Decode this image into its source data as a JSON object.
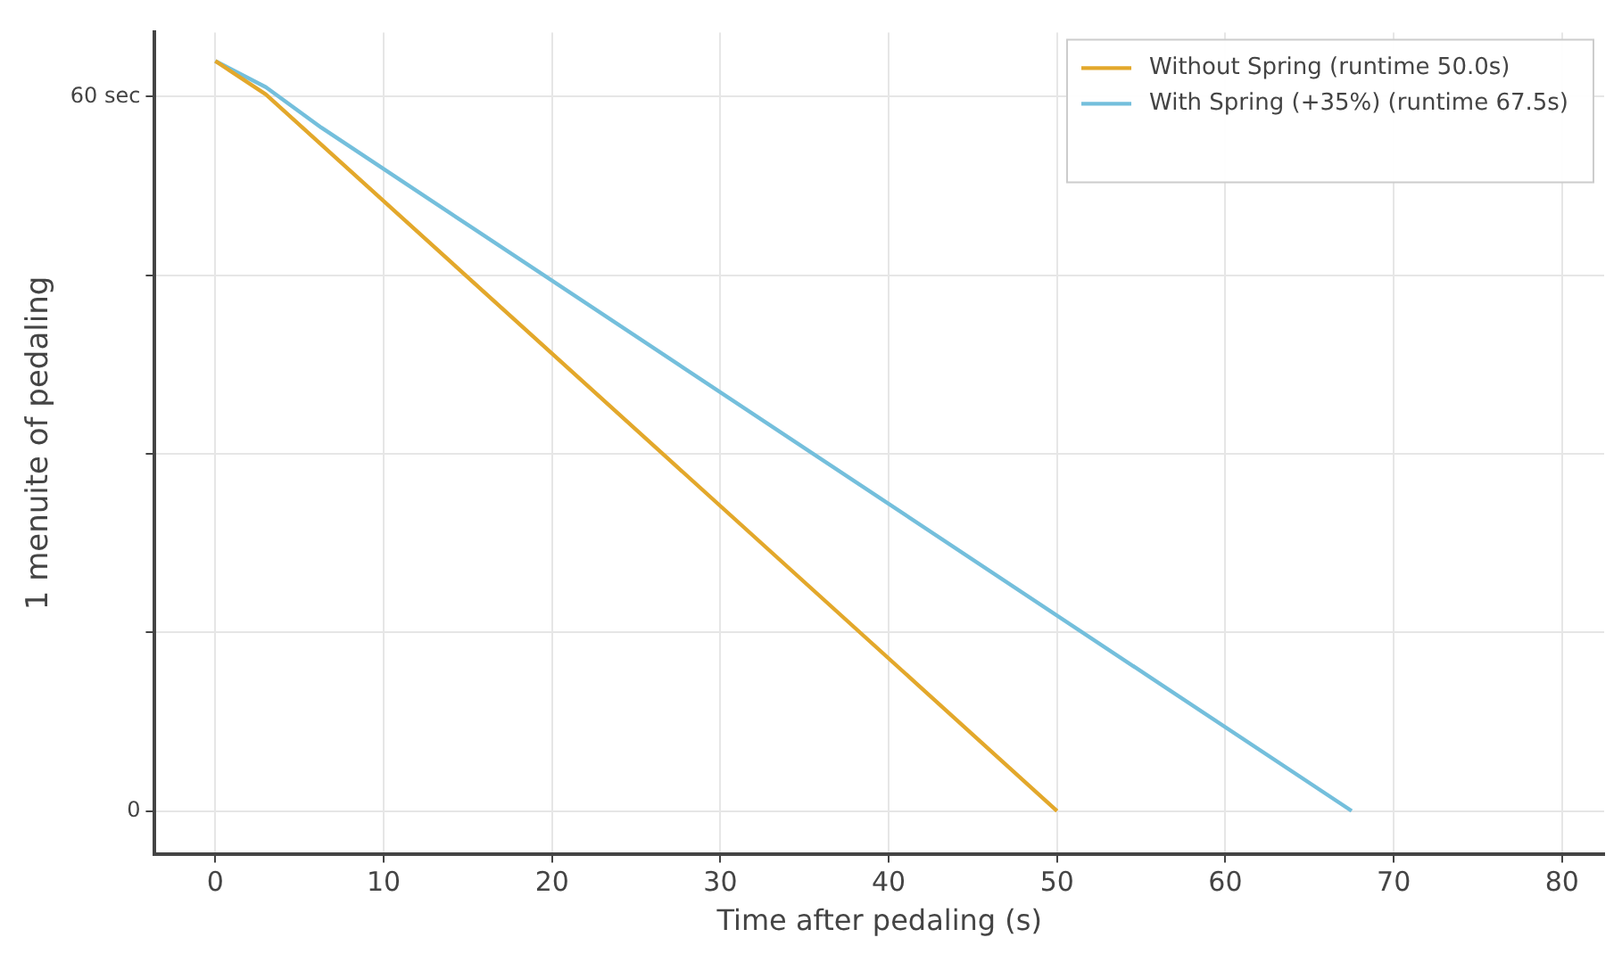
{
  "chart_data": {
    "type": "line",
    "xlabel": "Time after pedaling (s)",
    "ylabel": "1 menuite of pedaling",
    "series": [
      {
        "name": "Without Spring (runtime 50.0s)",
        "color": "#e3a82b",
        "x": [
          0,
          3,
          50
        ],
        "values": [
          63,
          60.2,
          0
        ]
      },
      {
        "name": "With Spring (+35%) (runtime 67.5s)",
        "color": "#74bfdc",
        "x": [
          0,
          3,
          6.3,
          67.5
        ],
        "values": [
          63,
          60.8,
          57.4,
          0
        ]
      }
    ],
    "xlim": [
      -3.6,
      82.5
    ],
    "xticks": [
      0,
      10,
      20,
      30,
      40,
      50,
      60,
      70,
      80
    ],
    "ylim": [
      -3.6,
      65.4
    ],
    "yticks": [
      0,
      {
        "value": 15,
        "label": null
      },
      {
        "value": 30,
        "label": null
      },
      {
        "value": 45,
        "label": null
      },
      {
        "value": 60,
        "label": "60 sec"
      }
    ],
    "grid": true,
    "legend": "top right",
    "marker": "none",
    "line_style": "solid"
  }
}
